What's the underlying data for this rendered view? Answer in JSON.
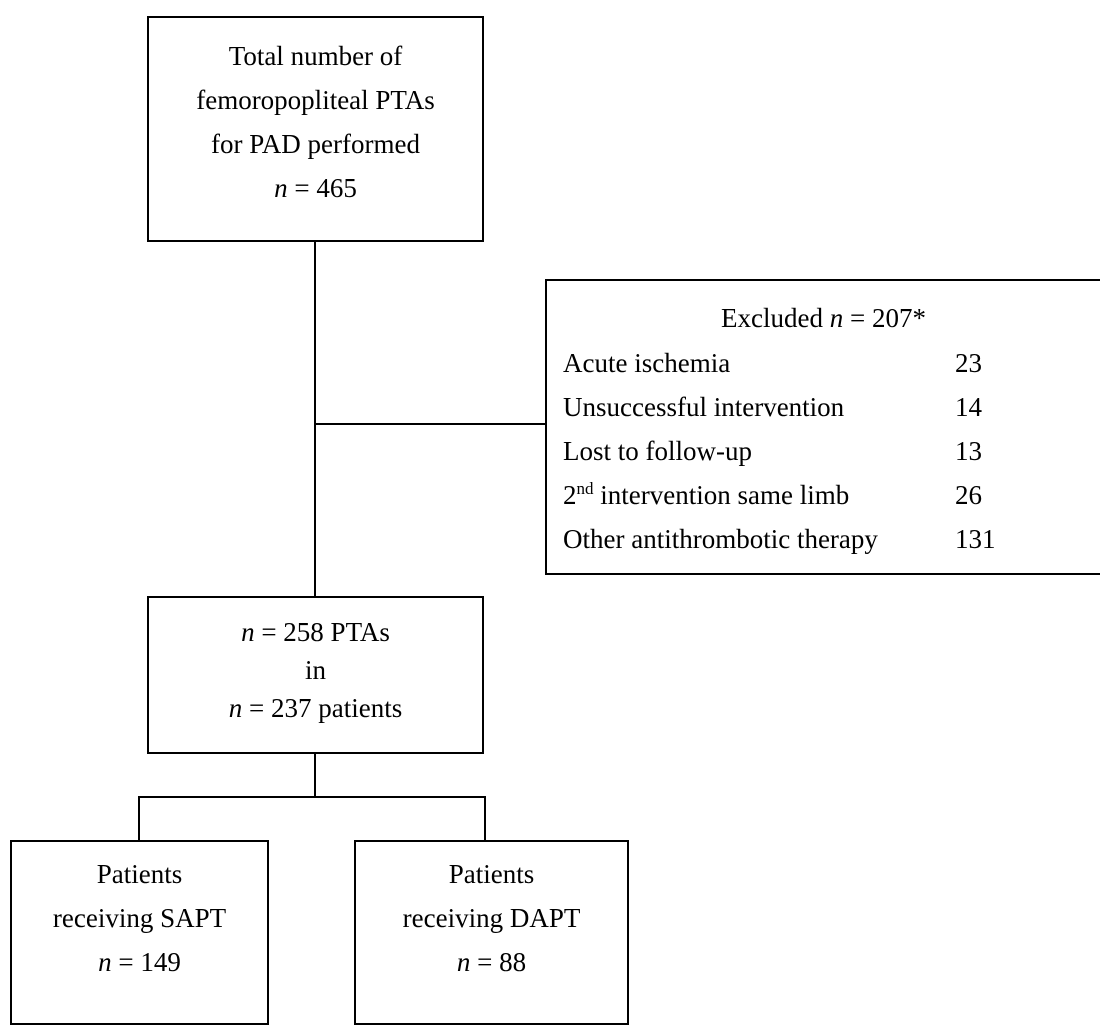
{
  "top_box": {
    "line1": "Total number of",
    "line2": "femoropopliteal PTAs",
    "line3": "for PAD performed",
    "n_symbol": "n",
    "n_value": " = 465"
  },
  "excluded_box": {
    "title_prefix": "Excluded ",
    "n_symbol": "n",
    "title_value": " = 207*",
    "items": [
      {
        "label": "Acute ischemia",
        "count": "23"
      },
      {
        "label": "Unsuccessful intervention",
        "count": "14"
      },
      {
        "label": "Lost to follow-up",
        "count": "13"
      },
      {
        "label_sup_prefix": "2",
        "label_sup": "nd",
        "label_rest": " intervention same limb",
        "count": "26"
      },
      {
        "label": "Other antithrombotic therapy",
        "count": "131"
      }
    ]
  },
  "middle_box": {
    "n_symbol": "n",
    "line1_rest": " = 258 PTAs",
    "line2": "in",
    "line3_rest": " = 237 patients"
  },
  "sapt_box": {
    "line1": "Patients",
    "line2": "receiving SAPT",
    "n_symbol": "n",
    "n_value": " = 149"
  },
  "dapt_box": {
    "line1": "Patients",
    "line2": "receiving DAPT",
    "n_symbol": "n",
    "n_value": " = 88"
  }
}
